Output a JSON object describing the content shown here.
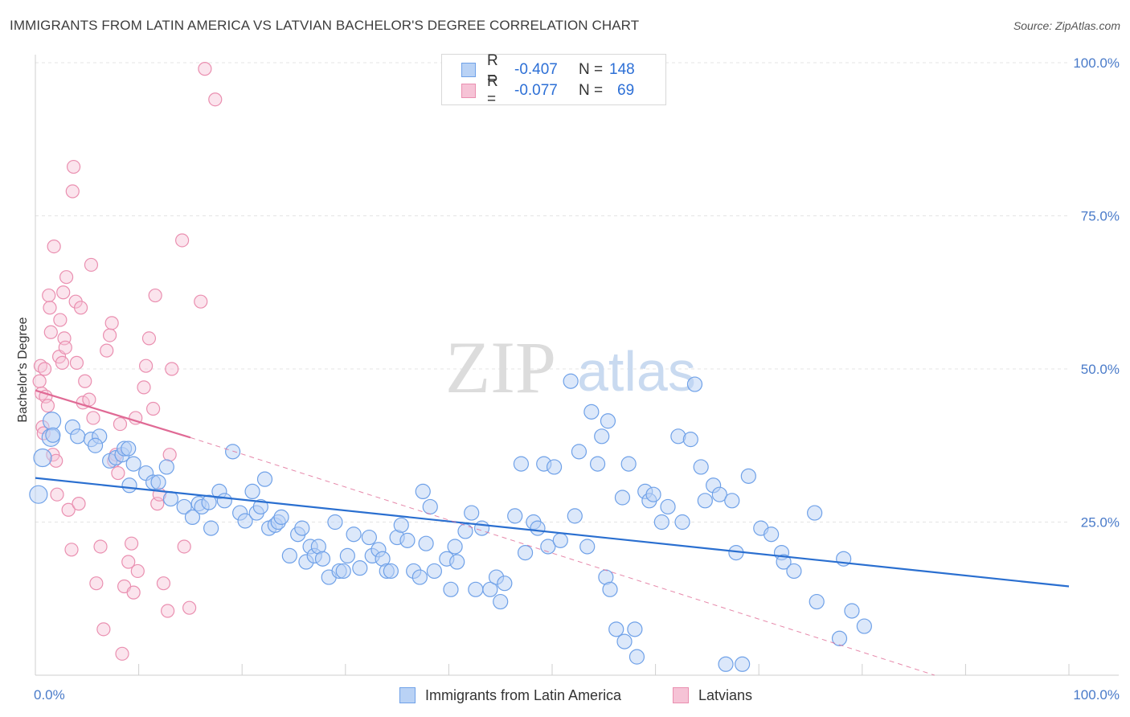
{
  "title": "IMMIGRANTS FROM LATIN AMERICA VS LATVIAN BACHELOR'S DEGREE CORRELATION CHART",
  "source": "Source: ZipAtlas.com",
  "watermark": {
    "zip": "ZIP",
    "atlas": "atlas"
  },
  "colors": {
    "blue": "#6fa1e8",
    "blue_fill": "#b9d2f5",
    "blue_line": "#2a6fd0",
    "pink": "#ea8fb0",
    "pink_fill": "#f6c3d6",
    "pink_line": "#e06a95"
  },
  "legend": {
    "blue": {
      "r_label": "R =",
      "r_value": "-0.407",
      "n_label": "N =",
      "n_value": "148"
    },
    "pink": {
      "r_label": "R =",
      "r_value": "-0.077",
      "n_label": "N =",
      "n_value": "69"
    }
  },
  "bottom_legend": {
    "blue": "Immigrants from Latin America",
    "pink": "Latvians"
  },
  "chart_data": {
    "type": "scatter",
    "title": "IMMIGRANTS FROM LATIN AMERICA VS LATVIAN BACHELOR'S DEGREE CORRELATION CHART",
    "xlabel": "",
    "ylabel": "Bachelor's Degree",
    "xlim": [
      0,
      100
    ],
    "ylim": [
      0,
      102
    ],
    "x_tick_labels": [
      "0.0%",
      "100.0%"
    ],
    "y_tick_labels": [
      "25.0%",
      "50.0%",
      "75.0%",
      "100.0%"
    ],
    "y_ticks": [
      25,
      50,
      75,
      100
    ],
    "grid": true,
    "legend_position": "top-center",
    "series": [
      {
        "name": "Immigrants from Latin America",
        "color": "#6fa1e8",
        "trend": {
          "x": [
            0,
            100
          ],
          "y": [
            32.2,
            14.5
          ]
        },
        "points": [
          [
            0.3,
            29.5
          ],
          [
            0.7,
            35.5
          ],
          [
            1.5,
            38.8
          ],
          [
            1.6,
            41.5
          ],
          [
            1.7,
            39.2
          ],
          [
            3.6,
            40.5
          ],
          [
            4.1,
            39
          ],
          [
            5.4,
            38.5
          ],
          [
            6.2,
            39
          ],
          [
            5.8,
            37.5
          ],
          [
            7.2,
            35
          ],
          [
            7.8,
            35.5
          ],
          [
            8.4,
            36
          ],
          [
            8.6,
            37
          ],
          [
            9,
            37
          ],
          [
            9.5,
            34.5
          ],
          [
            9.1,
            31
          ],
          [
            10.7,
            33
          ],
          [
            11.4,
            31.5
          ],
          [
            11.9,
            31.5
          ],
          [
            12.7,
            34
          ],
          [
            13.1,
            28.8
          ],
          [
            14.4,
            27.5
          ],
          [
            15.2,
            25.8
          ],
          [
            15.8,
            28
          ],
          [
            16.1,
            27.5
          ],
          [
            16.8,
            28.2
          ],
          [
            17,
            24
          ],
          [
            17.8,
            30
          ],
          [
            18.3,
            28.5
          ],
          [
            19.1,
            36.5
          ],
          [
            19.8,
            26.5
          ],
          [
            20.3,
            25.2
          ],
          [
            21,
            30
          ],
          [
            21.4,
            26.5
          ],
          [
            21.8,
            27.5
          ],
          [
            22.2,
            32
          ],
          [
            22.6,
            24
          ],
          [
            23.2,
            24.5
          ],
          [
            23.5,
            25
          ],
          [
            23.8,
            25.8
          ],
          [
            24.6,
            19.5
          ],
          [
            25.4,
            23
          ],
          [
            25.8,
            24
          ],
          [
            26.2,
            18.5
          ],
          [
            26.6,
            21
          ],
          [
            27,
            19.5
          ],
          [
            27.4,
            21
          ],
          [
            27.8,
            19
          ],
          [
            28.4,
            16
          ],
          [
            29,
            25
          ],
          [
            29.4,
            17
          ],
          [
            29.8,
            17
          ],
          [
            30.2,
            19.5
          ],
          [
            30.8,
            23
          ],
          [
            31.4,
            17.5
          ],
          [
            32.3,
            22.5
          ],
          [
            32.6,
            19.5
          ],
          [
            33.2,
            20.5
          ],
          [
            33.6,
            19
          ],
          [
            34,
            17
          ],
          [
            34.4,
            17
          ],
          [
            35,
            22.5
          ],
          [
            35.4,
            24.5
          ],
          [
            36,
            22
          ],
          [
            36.6,
            17
          ],
          [
            37.2,
            16
          ],
          [
            37.5,
            30
          ],
          [
            37.8,
            21.5
          ],
          [
            38.2,
            27.5
          ],
          [
            38.6,
            17
          ],
          [
            39.8,
            19
          ],
          [
            40.2,
            14
          ],
          [
            40.6,
            21
          ],
          [
            40.8,
            18.5
          ],
          [
            41.6,
            23.5
          ],
          [
            42.2,
            26.5
          ],
          [
            42.6,
            14
          ],
          [
            43.2,
            24
          ],
          [
            44,
            14
          ],
          [
            44.6,
            16
          ],
          [
            45,
            12
          ],
          [
            45.4,
            15
          ],
          [
            46.4,
            26
          ],
          [
            47,
            34.5
          ],
          [
            47.4,
            20
          ],
          [
            48.2,
            25
          ],
          [
            48.6,
            24
          ],
          [
            49.2,
            34.5
          ],
          [
            49.6,
            21
          ],
          [
            50.2,
            34
          ],
          [
            50.8,
            22
          ],
          [
            51.8,
            48
          ],
          [
            52.2,
            26
          ],
          [
            52.6,
            36.5
          ],
          [
            53.4,
            21
          ],
          [
            53.8,
            43
          ],
          [
            54.4,
            34.5
          ],
          [
            54.8,
            39
          ],
          [
            55.4,
            41.5
          ],
          [
            55.2,
            16
          ],
          [
            55.6,
            14
          ],
          [
            56.2,
            7.5
          ],
          [
            56.8,
            29
          ],
          [
            57,
            5.5
          ],
          [
            57.4,
            34.5
          ],
          [
            58,
            7.5
          ],
          [
            58.2,
            3
          ],
          [
            59,
            30
          ],
          [
            59.4,
            28.5
          ],
          [
            59.8,
            29.5
          ],
          [
            60.6,
            25
          ],
          [
            61.2,
            27.5
          ],
          [
            62.2,
            39
          ],
          [
            62.6,
            25
          ],
          [
            63.4,
            38.5
          ],
          [
            63.8,
            47.5
          ],
          [
            64.4,
            34
          ],
          [
            64.8,
            28.5
          ],
          [
            65.6,
            31
          ],
          [
            66.2,
            29.5
          ],
          [
            66.8,
            1.8
          ],
          [
            67.4,
            28.5
          ],
          [
            67.8,
            20
          ],
          [
            68.4,
            1.8
          ],
          [
            69,
            32.5
          ],
          [
            70.2,
            24
          ],
          [
            71.2,
            23
          ],
          [
            72.2,
            20
          ],
          [
            72.4,
            18.5
          ],
          [
            73.4,
            17
          ],
          [
            75.4,
            26.5
          ],
          [
            75.6,
            12
          ],
          [
            77.8,
            6
          ],
          [
            78.2,
            19
          ],
          [
            79,
            10.5
          ],
          [
            80.2,
            8
          ]
        ]
      },
      {
        "name": "Latvians",
        "color": "#ea8fb0",
        "trend": {
          "x": [
            0,
            15
          ],
          "y": [
            46.5,
            38.8
          ]
        },
        "trend_dashed": {
          "x": [
            15,
            87
          ],
          "y": [
            38.8,
            0
          ]
        },
        "points": [
          [
            0.4,
            48
          ],
          [
            0.5,
            50.5
          ],
          [
            0.6,
            46
          ],
          [
            0.7,
            40.5
          ],
          [
            0.8,
            39.5
          ],
          [
            0.9,
            50
          ],
          [
            1,
            45.5
          ],
          [
            1.2,
            44
          ],
          [
            1.3,
            62
          ],
          [
            1.4,
            60
          ],
          [
            1.5,
            56
          ],
          [
            1.7,
            36
          ],
          [
            1.8,
            70
          ],
          [
            2,
            35
          ],
          [
            2.1,
            29.5
          ],
          [
            2.3,
            52
          ],
          [
            2.4,
            58
          ],
          [
            2.6,
            51
          ],
          [
            2.7,
            62.5
          ],
          [
            2.8,
            55
          ],
          [
            2.9,
            53.5
          ],
          [
            3,
            65
          ],
          [
            3.2,
            27
          ],
          [
            3.5,
            20.5
          ],
          [
            3.6,
            79
          ],
          [
            3.7,
            83
          ],
          [
            3.9,
            61
          ],
          [
            4,
            51
          ],
          [
            4.2,
            28
          ],
          [
            4.4,
            60
          ],
          [
            4.6,
            44.5
          ],
          [
            4.8,
            48
          ],
          [
            5.2,
            45
          ],
          [
            5.4,
            67
          ],
          [
            5.6,
            42
          ],
          [
            5.9,
            15
          ],
          [
            6.3,
            21
          ],
          [
            6.6,
            7.5
          ],
          [
            6.9,
            53
          ],
          [
            7.2,
            55.5
          ],
          [
            7.4,
            57.5
          ],
          [
            7.6,
            35
          ],
          [
            7.8,
            36
          ],
          [
            8,
            33
          ],
          [
            8.2,
            41
          ],
          [
            8.4,
            3.5
          ],
          [
            8.6,
            14.5
          ],
          [
            9,
            18.5
          ],
          [
            9.3,
            21.5
          ],
          [
            9.5,
            13.5
          ],
          [
            9.7,
            42
          ],
          [
            9.9,
            17
          ],
          [
            10.5,
            47
          ],
          [
            10.7,
            50.5
          ],
          [
            11,
            55
          ],
          [
            11.4,
            43.5
          ],
          [
            11.6,
            62
          ],
          [
            11.8,
            28
          ],
          [
            12,
            29.5
          ],
          [
            12.4,
            15
          ],
          [
            12.8,
            10.5
          ],
          [
            13,
            36
          ],
          [
            13.2,
            50
          ],
          [
            14.2,
            71
          ],
          [
            14.4,
            21
          ],
          [
            14.9,
            11
          ],
          [
            16,
            61
          ],
          [
            16.4,
            99
          ],
          [
            17.4,
            94
          ]
        ]
      }
    ]
  }
}
